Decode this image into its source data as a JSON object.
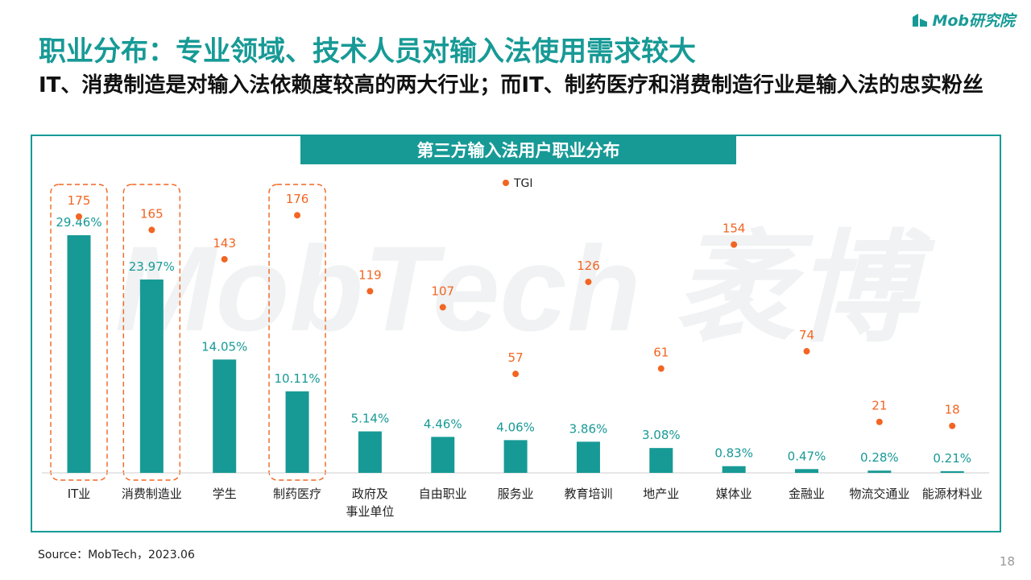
{
  "brand": {
    "logo_text": "Mob研究院",
    "watermark": "MobTech 袤博"
  },
  "title": "职业分布：专业领域、技术人员对输入法使用需求较大",
  "subtitle": "IT、消费制造是对输入法依赖度较高的两大行业；而IT、制药医疗和消费制造行业是输入法的忠实粉丝",
  "footer": {
    "source": "Source：MobTech，2023.06",
    "page": "18"
  },
  "colors": {
    "bar": "#179a96",
    "tgi": "#f26522",
    "highlight": "#f26522"
  },
  "chart_data": {
    "type": "bar",
    "title": "第三方输入法用户职业分布",
    "categories": [
      "IT业",
      "消费制造业",
      "学生",
      "制药医疗",
      "政府及\n事业单位",
      "自由职业",
      "服务业",
      "教育培训",
      "地产业",
      "媒体业",
      "金融业",
      "物流交通业",
      "能源材料业"
    ],
    "series": [
      {
        "values": [
          29.46,
          23.97,
          14.05,
          10.11,
          5.14,
          4.46,
          4.06,
          3.86,
          3.08,
          0.83,
          0.47,
          0.28,
          0.21
        ],
        "labels": [
          "29.46%",
          "23.97%",
          "14.05%",
          "10.11%",
          "5.14%",
          "4.46%",
          "4.06%",
          "3.86%",
          "3.08%",
          "0.83%",
          "0.47%",
          "0.28%",
          "0.21%"
        ]
      },
      {
        "name": "TGI",
        "type": "scatter",
        "values": [
          175,
          165,
          143,
          176,
          119,
          107,
          57,
          126,
          61,
          154,
          74,
          21,
          18
        ]
      }
    ],
    "legend": "top-center",
    "highlighted_categories": [
      "IT业",
      "消费制造业",
      "制药医疗"
    ]
  }
}
